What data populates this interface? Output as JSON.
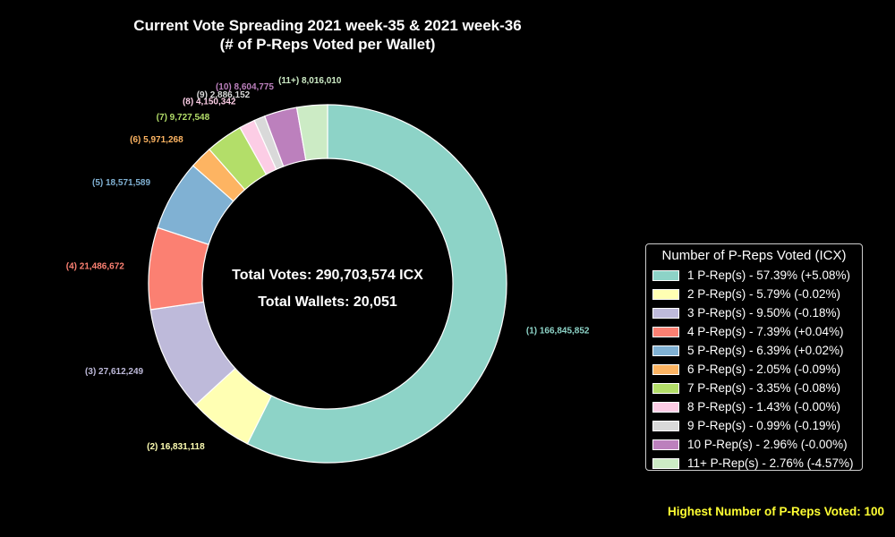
{
  "title_line1": "Current Vote Spreading 2021 week-35 & 2021 week-36",
  "title_line2": "(# of P-Reps Voted per Wallet)",
  "center": {
    "total_votes": "Total Votes: 290,703,574 ICX",
    "total_wallets": "Total Wallets: 20,051"
  },
  "footer": "Highest Number of P-Reps Voted: 100",
  "chart_data": {
    "type": "pie",
    "style": "donut",
    "title": "Current Vote Spreading 2021 week-35 & 2021 week-36\n(# of P-Reps Voted per Wallet)",
    "legend_title": "Number of P-Reps Voted (ICX)",
    "legend_position": "right",
    "slices": [
      {
        "key": "(1)",
        "value": 166845852,
        "value_label": "166,845,852",
        "legend": "1 P-Rep(s) - 57.39% (+5.08%)",
        "color": "#8dd3c7"
      },
      {
        "key": "(2)",
        "value": 16831118,
        "value_label": "16,831,118",
        "legend": "2 P-Rep(s) - 5.79% (-0.02%)",
        "color": "#ffffb3"
      },
      {
        "key": "(3)",
        "value": 27612249,
        "value_label": "27,612,249",
        "legend": "3 P-Rep(s) - 9.50% (-0.18%)",
        "color": "#bebada"
      },
      {
        "key": "(4)",
        "value": 21486672,
        "value_label": "21,486,672",
        "legend": "4 P-Rep(s) - 7.39% (+0.04%)",
        "color": "#fb8072"
      },
      {
        "key": "(5)",
        "value": 18571589,
        "value_label": "18,571,589",
        "legend": "5 P-Rep(s) - 6.39% (+0.02%)",
        "color": "#80b1d3"
      },
      {
        "key": "(6)",
        "value": 5971268,
        "value_label": "5,971,268",
        "legend": "6 P-Rep(s) - 2.05% (-0.09%)",
        "color": "#fdb462"
      },
      {
        "key": "(7)",
        "value": 9727548,
        "value_label": "9,727,548",
        "legend": "7 P-Rep(s) - 3.35% (-0.08%)",
        "color": "#b3de69"
      },
      {
        "key": "(8)",
        "value": 4150342,
        "value_label": "4,150,342",
        "legend": "8 P-Rep(s) - 1.43% (-0.00%)",
        "color": "#fccde5"
      },
      {
        "key": "(9)",
        "value": 2886152,
        "value_label": "2,886,152",
        "legend": "9 P-Rep(s) - 0.99% (-0.19%)",
        "color": "#d9d9d9"
      },
      {
        "key": "(10)",
        "value": 8604775,
        "value_label": "8,604,775",
        "legend": "10 P-Rep(s) - 2.96% (-0.00%)",
        "color": "#bc80bd"
      },
      {
        "key": "(11+)",
        "value": 8016010,
        "value_label": "8,016,010",
        "legend": "11+ P-Rep(s) - 2.76% (-4.57%)",
        "color": "#ccebc5"
      }
    ]
  }
}
